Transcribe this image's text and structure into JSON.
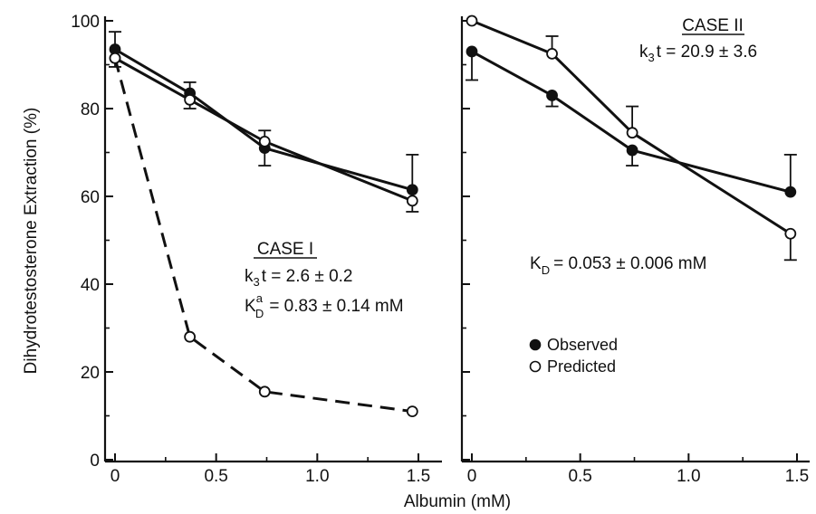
{
  "chart_data": [
    {
      "type": "line",
      "panel": "left",
      "x": [
        0,
        0.37,
        0.74,
        1.47
      ],
      "ylim": [
        0,
        100
      ],
      "xlim": [
        0,
        1.5
      ],
      "yticks": [
        0,
        20,
        40,
        60,
        80,
        100
      ],
      "yticklabels": [
        "0",
        "20",
        "40",
        "60",
        "80",
        "100"
      ],
      "xticks": [
        0,
        0.5,
        1.0,
        1.5
      ],
      "xticklabels": [
        "0",
        "0.5",
        "1.0",
        "1.5"
      ],
      "ylabel": "Dihydrotestosterone Extraction (%)",
      "series": [
        {
          "marker": "filled",
          "style": "solid",
          "values": [
            93.5,
            83.5,
            71,
            61.5
          ],
          "errors": [
            4,
            2.5,
            4,
            8
          ]
        },
        {
          "marker": "open",
          "style": "solid",
          "values": [
            91.5,
            82,
            72.5,
            59
          ],
          "errors": [
            2,
            2,
            2.5,
            2.5
          ]
        },
        {
          "marker": "open",
          "style": "dashed",
          "values": [
            91.5,
            28,
            15.5,
            11
          ]
        }
      ],
      "annotation": {
        "title": "CASE I",
        "line1_main": "k",
        "line1_sub": "3",
        "line1_rest": "t = 2.6 ± 0.2",
        "line2_main": "K",
        "line2_sup": "a",
        "line2_sub": "D",
        "line2_rest": "= 0.83 ± 0.14 mM"
      }
    },
    {
      "type": "line",
      "panel": "right",
      "x": [
        0,
        0.37,
        0.74,
        1.47
      ],
      "ylim": [
        0,
        100
      ],
      "xlim": [
        0,
        1.5
      ],
      "xticks": [
        0,
        0.5,
        1.0,
        1.5
      ],
      "xticklabels": [
        "0",
        "0.5",
        "1.0",
        "1.5"
      ],
      "series": [
        {
          "marker": "filled",
          "style": "solid",
          "name": "Observed",
          "values": [
            93,
            83,
            70.5,
            61
          ],
          "errors": [
            6.5,
            2.5,
            3.5,
            8.5
          ]
        },
        {
          "marker": "open",
          "style": "solid",
          "name": "Predicted",
          "values": [
            100,
            92.5,
            74.5,
            51.5
          ],
          "errors": [
            0,
            4,
            6,
            6
          ]
        }
      ],
      "annotation": {
        "title": "CASE II",
        "line1_main": "k",
        "line1_sub": "3",
        "line1_rest": "t = 20.9 ± 3.6",
        "kd_main": "K",
        "kd_sub": "D",
        "kd_rest": "= 0.053 ± 0.006 mM"
      },
      "legend": {
        "position": "center",
        "observed": "Observed",
        "predicted": "Predicted"
      }
    }
  ],
  "shared_xlabel": "Albumin (mM)"
}
